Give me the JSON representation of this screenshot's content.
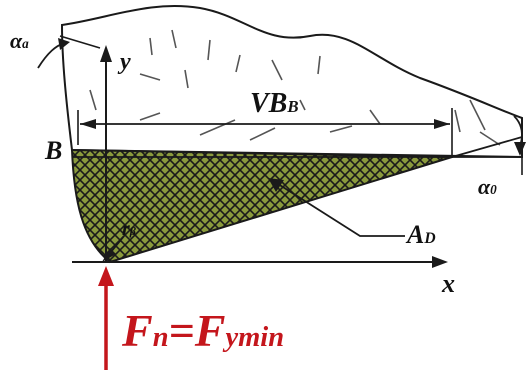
{
  "labels": {
    "alpha_a": {
      "main": "α",
      "sub": "a"
    },
    "y_axis": "y",
    "vb": {
      "main": "VB",
      "sub": "B"
    },
    "point_b": "B",
    "alpha_0": {
      "main": "α",
      "sub": "0"
    },
    "r_beta": {
      "main": "r",
      "sub": "β"
    },
    "area": {
      "main": "A",
      "sub": "D"
    },
    "x_axis": "x",
    "force": {
      "main": "F",
      "sub": "n",
      "eq": "=",
      "main2": "F",
      "sub2": "ymin"
    }
  },
  "colors": {
    "line": "#1a1a1a",
    "hatch_fill": "#8a9a3c",
    "hatch_line": "#1a1a1a",
    "force": "#c4161c"
  }
}
